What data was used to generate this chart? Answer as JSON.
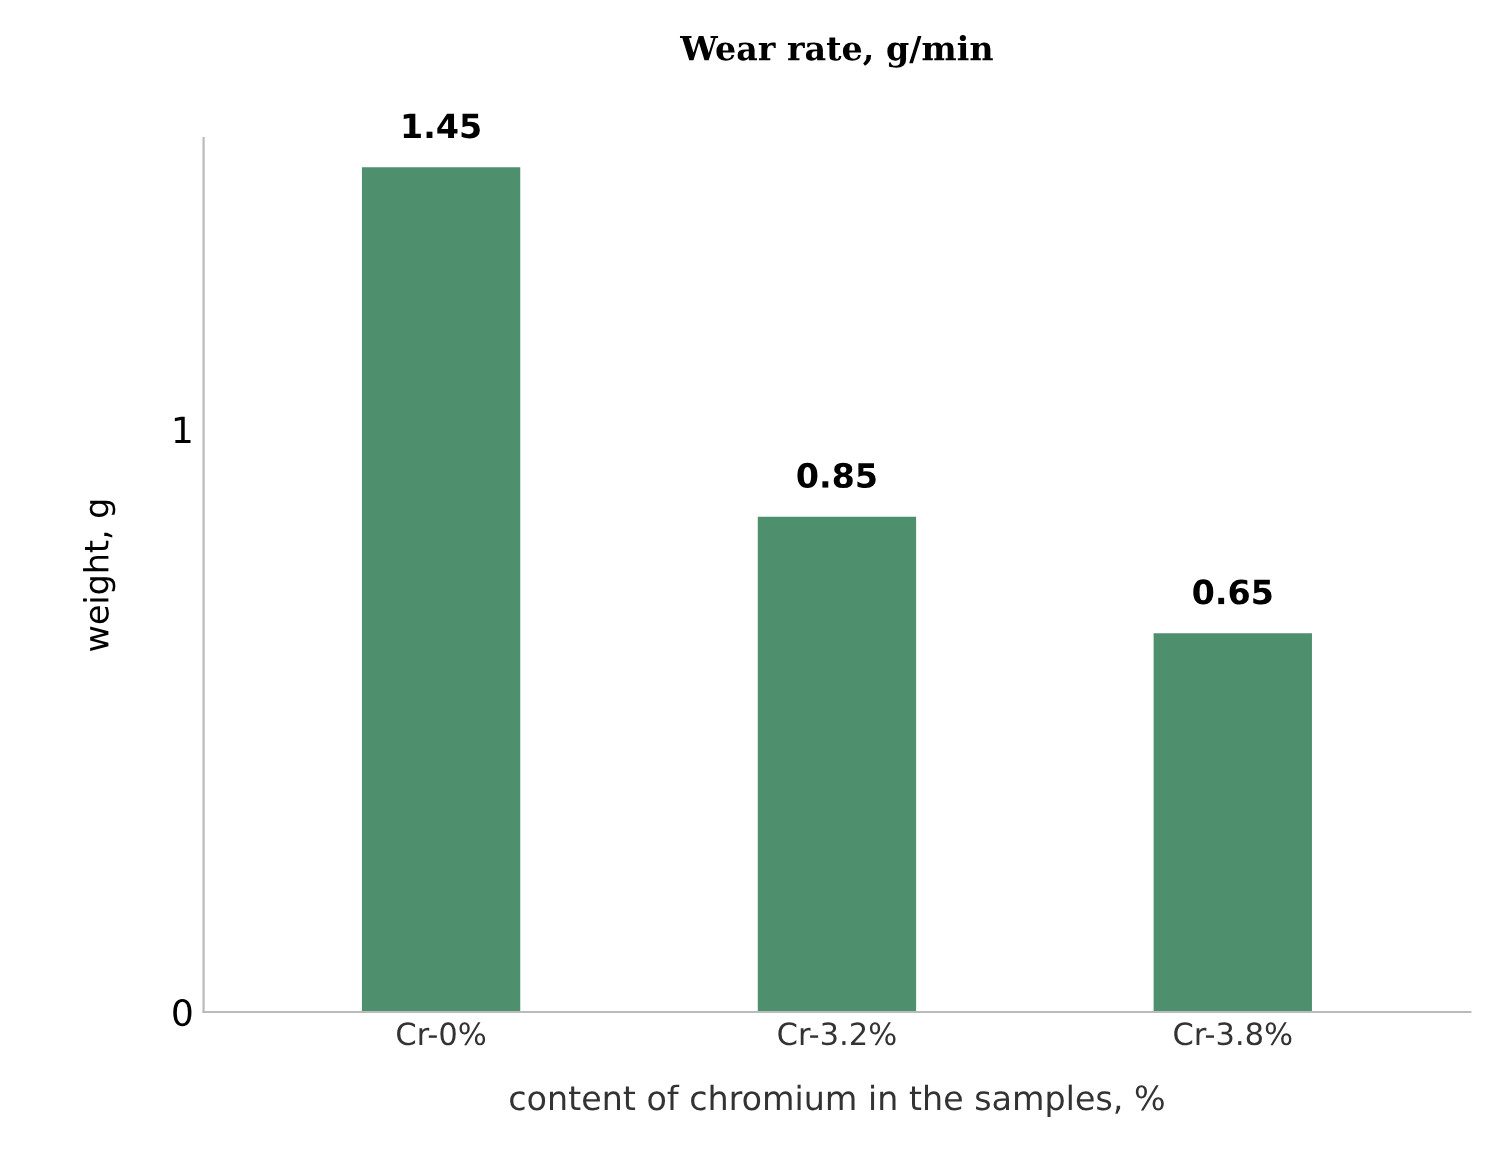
{
  "chart_data": {
    "type": "bar",
    "title": "Wear rate, g/min",
    "xlabel": "content of chromium in the samples, %",
    "ylabel": "weight, g",
    "categories": [
      "Cr-0%",
      "Cr-3.2%",
      "Cr-3.8%"
    ],
    "values": [
      1.45,
      0.85,
      0.65
    ],
    "color": "#4e8f6e",
    "ylim": [
      0,
      1.5
    ],
    "yticks": [
      0,
      1
    ],
    "grid": false,
    "data_labels": true
  }
}
